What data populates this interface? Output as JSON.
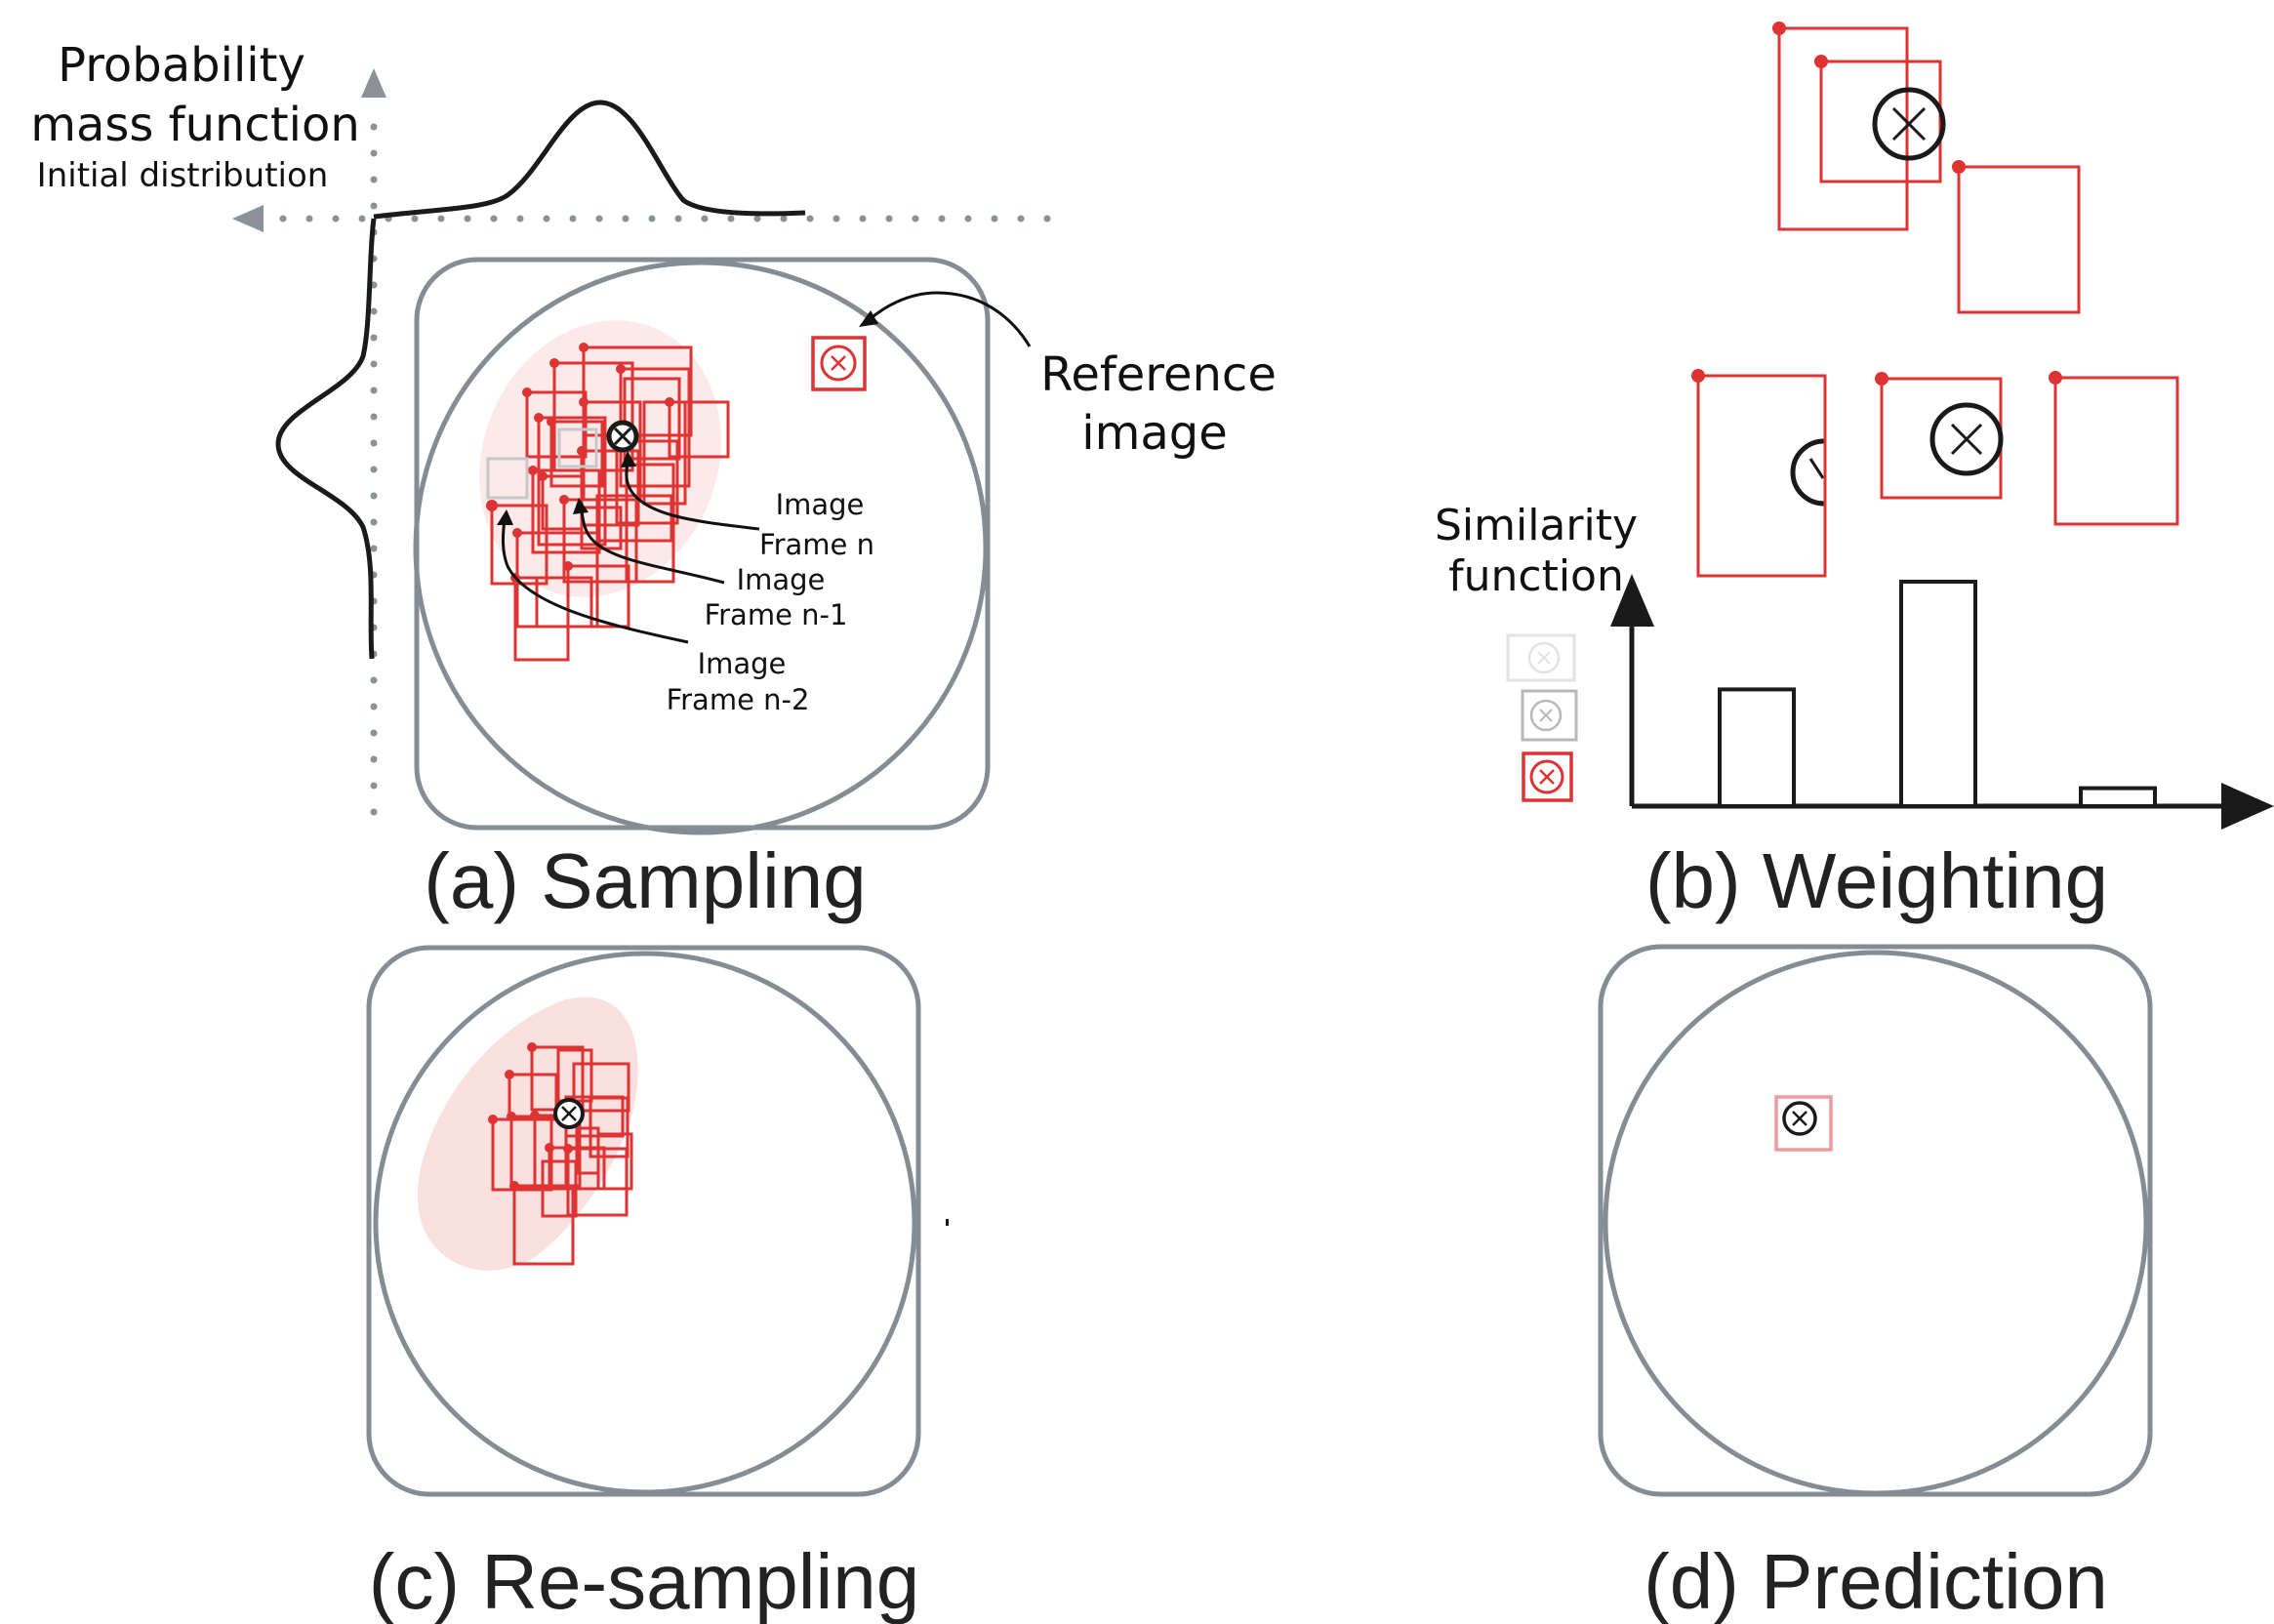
{
  "panels": {
    "sampling": {
      "caption": "(a) Sampling",
      "pmf_title_line1": "Probability",
      "pmf_title_line2": "mass function",
      "pmf_subtitle": "Initial distribution",
      "reference_line1": "Reference",
      "reference_line2": "image",
      "frame_n_line1": "Image",
      "frame_n_line2": "Frame n",
      "frame_n1_line1": "Image",
      "frame_n1_line2": "Frame n-1",
      "frame_n2_line1": "Image",
      "frame_n2_line2": "Frame n-2"
    },
    "weighting": {
      "caption": "(b) Weighting",
      "similarity_line1": "Similarity",
      "similarity_line2": "function",
      "bar_heights": [
        0.52,
        1.0,
        0.08
      ]
    },
    "resampling": {
      "caption": "(c) Re-sampling"
    },
    "prediction": {
      "caption": "(d) Prediction"
    }
  },
  "colors": {
    "frame_red": "#dd3333",
    "panel_gray": "#848c94",
    "axis_gray": "#8a9199",
    "ink": "#1a1a1a"
  }
}
